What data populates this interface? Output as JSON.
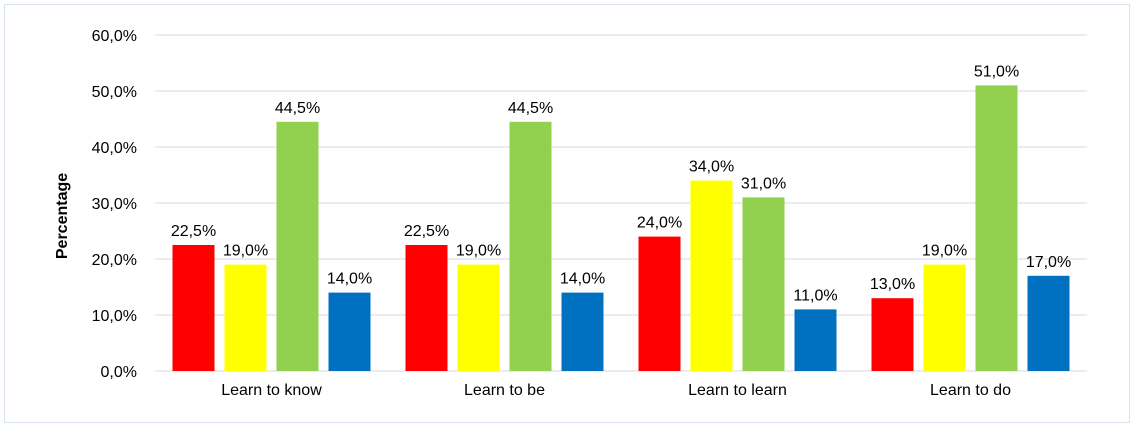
{
  "chart_data": {
    "type": "bar",
    "title": "",
    "xlabel": "",
    "ylabel": "Percentage",
    "ylim": [
      0,
      60
    ],
    "yticks": [
      0,
      10,
      20,
      30,
      40,
      50,
      60
    ],
    "ytick_labels": [
      "0,0%",
      "10,0%",
      "20,0%",
      "30,0%",
      "40,0%",
      "50,0%",
      "60,0%"
    ],
    "grid": true,
    "legend": "none",
    "categories": [
      "Learn to know",
      "Learn to be",
      "Learn to learn",
      "Learn to do"
    ],
    "series": [
      {
        "color": "#ff0000",
        "values": [
          22.5,
          22.5,
          24.0,
          13.0
        ],
        "labels": [
          "22,5%",
          "22,5%",
          "24,0%",
          "13,0%"
        ]
      },
      {
        "color": "#ffff00",
        "values": [
          19.0,
          19.0,
          34.0,
          19.0
        ],
        "labels": [
          "19,0%",
          "19,0%",
          "34,0%",
          "19,0%"
        ]
      },
      {
        "color": "#92d050",
        "values": [
          44.5,
          44.5,
          31.0,
          51.0
        ],
        "labels": [
          "44,5%",
          "44,5%",
          "31,0%",
          "51,0%"
        ]
      },
      {
        "color": "#0070c0",
        "values": [
          14.0,
          14.0,
          11.0,
          17.0
        ],
        "labels": [
          "14,0%",
          "14,0%",
          "11,0%",
          "17,0%"
        ]
      }
    ]
  }
}
